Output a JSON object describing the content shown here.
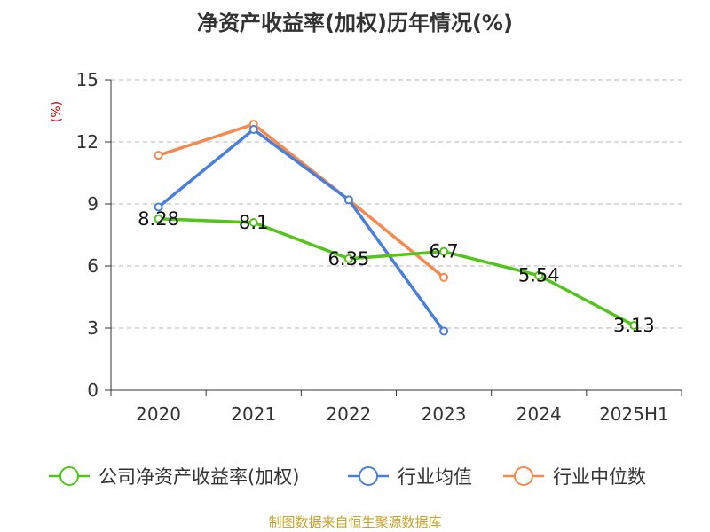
{
  "chart_data": {
    "type": "line",
    "title": "净资产收益率(加权)历年情况(%)",
    "ylabel": "(%)",
    "xlabel": "",
    "categories": [
      "2020",
      "2021",
      "2022",
      "2023",
      "2024",
      "2025H1"
    ],
    "ylim": [
      0,
      15
    ],
    "yticks": [
      0,
      3,
      6,
      9,
      12,
      15
    ],
    "grid": true,
    "legend_position": "bottom",
    "series": [
      {
        "name": "公司净资产收益率(加权)",
        "color": "#52c41a",
        "values": [
          8.28,
          8.1,
          6.35,
          6.7,
          5.54,
          3.13
        ],
        "labels": [
          "8.28",
          "8.1",
          "6.35",
          "6.7",
          "5.54",
          "3.13"
        ]
      },
      {
        "name": "行业均值",
        "color": "#4a7fd9",
        "values": [
          8.85,
          12.6,
          9.2,
          2.85,
          null,
          null
        ]
      },
      {
        "name": "行业中位数",
        "color": "#f5894f",
        "values": [
          11.35,
          12.85,
          9.2,
          5.45,
          null,
          null
        ]
      }
    ],
    "source": "制图数据来自恒生聚源数据库"
  }
}
